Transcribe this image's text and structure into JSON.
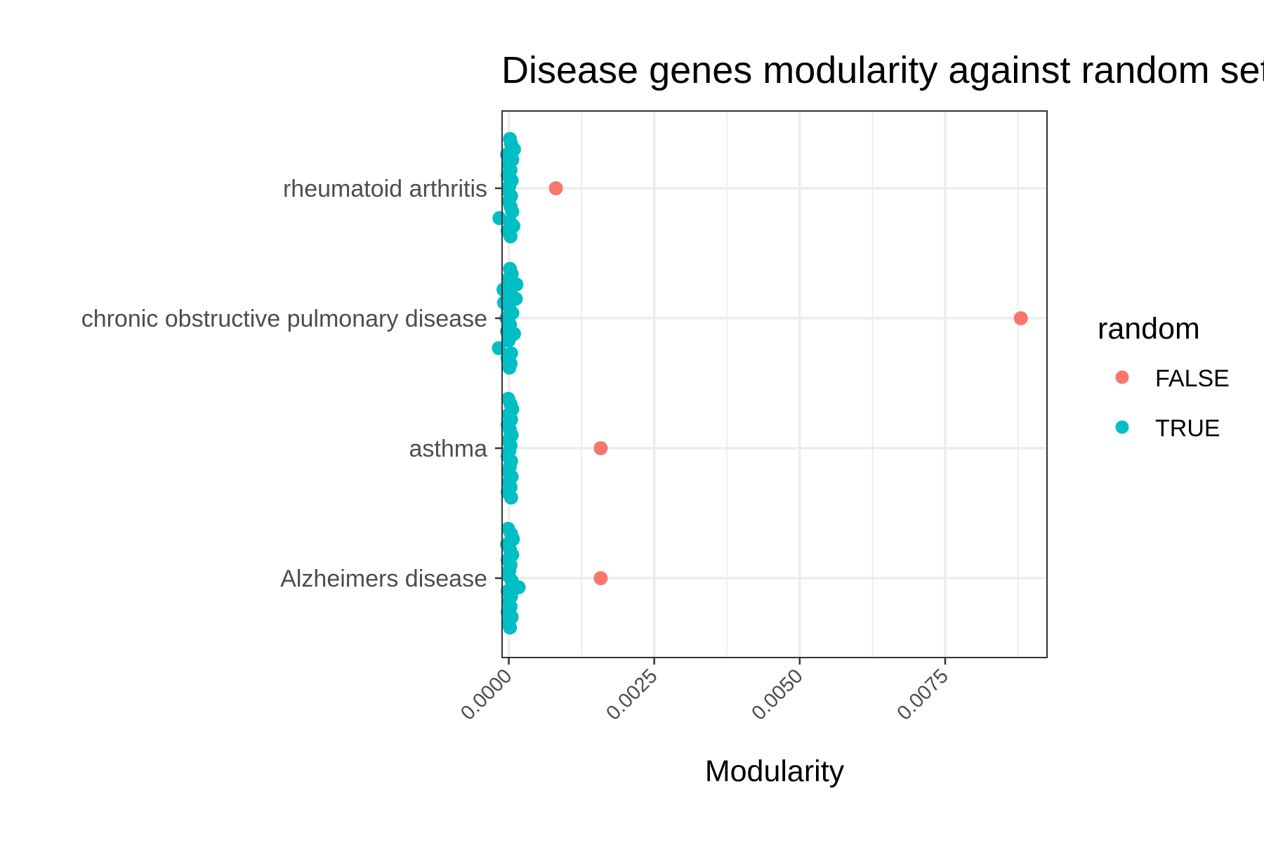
{
  "chart_data": {
    "type": "scatter",
    "title": "Disease genes modularity against random sets",
    "xlabel": "Modularity",
    "ylabel": "",
    "xlim": [
      -0.000115,
      0.00925
    ],
    "x_ticks": [
      0.0,
      0.0025,
      0.005,
      0.0075
    ],
    "x_tick_labels": [
      "0.0000",
      "0.0025",
      "0.0050",
      "0.0075"
    ],
    "x_minor_grid": [
      0.00125,
      0.00375,
      0.00625,
      0.00875
    ],
    "categories": [
      "rheumatoid arthritis",
      "chronic obstructive pulmonary disease",
      "asthma",
      "Alzheimers disease"
    ],
    "grid": true,
    "legend": {
      "title": "random",
      "position": "right",
      "entries": [
        {
          "label": "FALSE",
          "color": "#F8766D"
        },
        {
          "label": "TRUE",
          "color": "#00BFC4"
        }
      ]
    },
    "series": [
      {
        "name": "FALSE",
        "color": "#F8766D",
        "points": [
          {
            "category": "rheumatoid arthritis",
            "x": 0.00081
          },
          {
            "category": "chronic obstructive pulmonary disease",
            "x": 0.0088
          },
          {
            "category": "asthma",
            "x": 0.00158
          },
          {
            "category": "Alzheimers disease",
            "x": 0.00158
          }
        ]
      },
      {
        "name": "TRUE",
        "color": "#00BFC4",
        "points": [
          {
            "category": "rheumatoid arthritis",
            "x": 2e-05,
            "jitter": -0.38
          },
          {
            "category": "rheumatoid arthritis",
            "x": 4e-05,
            "jitter": -0.34
          },
          {
            "category": "rheumatoid arthritis",
            "x": 9e-05,
            "jitter": -0.3
          },
          {
            "category": "rheumatoid arthritis",
            "x": -3e-05,
            "jitter": -0.26
          },
          {
            "category": "rheumatoid arthritis",
            "x": 6e-05,
            "jitter": -0.22
          },
          {
            "category": "rheumatoid arthritis",
            "x": 0.0,
            "jitter": -0.18
          },
          {
            "category": "rheumatoid arthritis",
            "x": 3e-05,
            "jitter": -0.14
          },
          {
            "category": "rheumatoid arthritis",
            "x": -2e-05,
            "jitter": -0.1
          },
          {
            "category": "rheumatoid arthritis",
            "x": 5e-05,
            "jitter": -0.06
          },
          {
            "category": "rheumatoid arthritis",
            "x": 1e-05,
            "jitter": -0.02
          },
          {
            "category": "rheumatoid arthritis",
            "x": -1e-05,
            "jitter": 0.02
          },
          {
            "category": "rheumatoid arthritis",
            "x": 4e-05,
            "jitter": 0.06
          },
          {
            "category": "rheumatoid arthritis",
            "x": 0.0,
            "jitter": 0.1
          },
          {
            "category": "rheumatoid arthritis",
            "x": 3e-05,
            "jitter": 0.14
          },
          {
            "category": "rheumatoid arthritis",
            "x": 6e-05,
            "jitter": 0.18
          },
          {
            "category": "rheumatoid arthritis",
            "x": -0.00016,
            "jitter": 0.23
          },
          {
            "category": "rheumatoid arthritis",
            "x": 2e-05,
            "jitter": 0.26
          },
          {
            "category": "rheumatoid arthritis",
            "x": 8e-05,
            "jitter": 0.29
          },
          {
            "category": "rheumatoid arthritis",
            "x": -2e-05,
            "jitter": 0.33
          },
          {
            "category": "rheumatoid arthritis",
            "x": 3e-05,
            "jitter": 0.37
          },
          {
            "category": "chronic obstructive pulmonary disease",
            "x": 2e-05,
            "jitter": -0.38
          },
          {
            "category": "chronic obstructive pulmonary disease",
            "x": 5e-05,
            "jitter": -0.34
          },
          {
            "category": "chronic obstructive pulmonary disease",
            "x": -1e-05,
            "jitter": -0.3
          },
          {
            "category": "chronic obstructive pulmonary disease",
            "x": 0.00013,
            "jitter": -0.26
          },
          {
            "category": "chronic obstructive pulmonary disease",
            "x": -9e-05,
            "jitter": -0.22
          },
          {
            "category": "chronic obstructive pulmonary disease",
            "x": 3e-05,
            "jitter": -0.18
          },
          {
            "category": "chronic obstructive pulmonary disease",
            "x": 0.00012,
            "jitter": -0.15
          },
          {
            "category": "chronic obstructive pulmonary disease",
            "x": -8e-05,
            "jitter": -0.12
          },
          {
            "category": "chronic obstructive pulmonary disease",
            "x": 1e-05,
            "jitter": -0.08
          },
          {
            "category": "chronic obstructive pulmonary disease",
            "x": 6e-05,
            "jitter": -0.04
          },
          {
            "category": "chronic obstructive pulmonary disease",
            "x": -4e-05,
            "jitter": 0.0
          },
          {
            "category": "chronic obstructive pulmonary disease",
            "x": 2e-05,
            "jitter": 0.05
          },
          {
            "category": "chronic obstructive pulmonary disease",
            "x": -3e-05,
            "jitter": 0.1
          },
          {
            "category": "chronic obstructive pulmonary disease",
            "x": 9e-05,
            "jitter": 0.12
          },
          {
            "category": "chronic obstructive pulmonary disease",
            "x": 0.0,
            "jitter": 0.17
          },
          {
            "category": "chronic obstructive pulmonary disease",
            "x": -0.00017,
            "jitter": 0.23
          },
          {
            "category": "chronic obstructive pulmonary disease",
            "x": 4e-05,
            "jitter": 0.27
          },
          {
            "category": "chronic obstructive pulmonary disease",
            "x": -2e-05,
            "jitter": 0.31
          },
          {
            "category": "chronic obstructive pulmonary disease",
            "x": 3e-05,
            "jitter": 0.35
          },
          {
            "category": "chronic obstructive pulmonary disease",
            "x": 1e-05,
            "jitter": 0.38
          },
          {
            "category": "asthma",
            "x": -1e-05,
            "jitter": -0.38
          },
          {
            "category": "asthma",
            "x": 3e-05,
            "jitter": -0.34
          },
          {
            "category": "asthma",
            "x": 6e-05,
            "jitter": -0.3
          },
          {
            "category": "asthma",
            "x": 0.0,
            "jitter": -0.26
          },
          {
            "category": "asthma",
            "x": 4e-05,
            "jitter": -0.22
          },
          {
            "category": "asthma",
            "x": -2e-05,
            "jitter": -0.18
          },
          {
            "category": "asthma",
            "x": 2e-05,
            "jitter": -0.14
          },
          {
            "category": "asthma",
            "x": 5e-05,
            "jitter": -0.1
          },
          {
            "category": "asthma",
            "x": -1e-05,
            "jitter": -0.06
          },
          {
            "category": "asthma",
            "x": 3e-05,
            "jitter": -0.02
          },
          {
            "category": "asthma",
            "x": 1e-05,
            "jitter": 0.02
          },
          {
            "category": "asthma",
            "x": -2e-05,
            "jitter": 0.06
          },
          {
            "category": "asthma",
            "x": 4e-05,
            "jitter": 0.1
          },
          {
            "category": "asthma",
            "x": 2e-05,
            "jitter": 0.14
          },
          {
            "category": "asthma",
            "x": -1e-05,
            "jitter": 0.18
          },
          {
            "category": "asthma",
            "x": 5e-05,
            "jitter": 0.22
          },
          {
            "category": "asthma",
            "x": 0.0,
            "jitter": 0.26
          },
          {
            "category": "asthma",
            "x": 3e-05,
            "jitter": 0.3
          },
          {
            "category": "asthma",
            "x": -2e-05,
            "jitter": 0.34
          },
          {
            "category": "asthma",
            "x": 4e-05,
            "jitter": 0.38
          },
          {
            "category": "Alzheimers disease",
            "x": -1e-05,
            "jitter": -0.38
          },
          {
            "category": "Alzheimers disease",
            "x": 4e-05,
            "jitter": -0.34
          },
          {
            "category": "Alzheimers disease",
            "x": 7e-05,
            "jitter": -0.3
          },
          {
            "category": "Alzheimers disease",
            "x": -3e-05,
            "jitter": -0.26
          },
          {
            "category": "Alzheimers disease",
            "x": 2e-05,
            "jitter": -0.22
          },
          {
            "category": "Alzheimers disease",
            "x": 6e-05,
            "jitter": -0.18
          },
          {
            "category": "Alzheimers disease",
            "x": -2e-05,
            "jitter": -0.14
          },
          {
            "category": "Alzheimers disease",
            "x": 3e-05,
            "jitter": -0.1
          },
          {
            "category": "Alzheimers disease",
            "x": 1e-05,
            "jitter": -0.06
          },
          {
            "category": "Alzheimers disease",
            "x": -1e-05,
            "jitter": -0.02
          },
          {
            "category": "Alzheimers disease",
            "x": 5e-05,
            "jitter": 0.02
          },
          {
            "category": "Alzheimers disease",
            "x": 0.00017,
            "jitter": 0.07
          },
          {
            "category": "Alzheimers disease",
            "x": -2e-05,
            "jitter": 0.1
          },
          {
            "category": "Alzheimers disease",
            "x": 4e-05,
            "jitter": 0.14
          },
          {
            "category": "Alzheimers disease",
            "x": 0.0,
            "jitter": 0.18
          },
          {
            "category": "Alzheimers disease",
            "x": 3e-05,
            "jitter": 0.22
          },
          {
            "category": "Alzheimers disease",
            "x": -2e-05,
            "jitter": 0.26
          },
          {
            "category": "Alzheimers disease",
            "x": 5e-05,
            "jitter": 0.3
          },
          {
            "category": "Alzheimers disease",
            "x": -1e-05,
            "jitter": 0.34
          },
          {
            "category": "Alzheimers disease",
            "x": 2e-05,
            "jitter": 0.38
          }
        ]
      }
    ]
  }
}
